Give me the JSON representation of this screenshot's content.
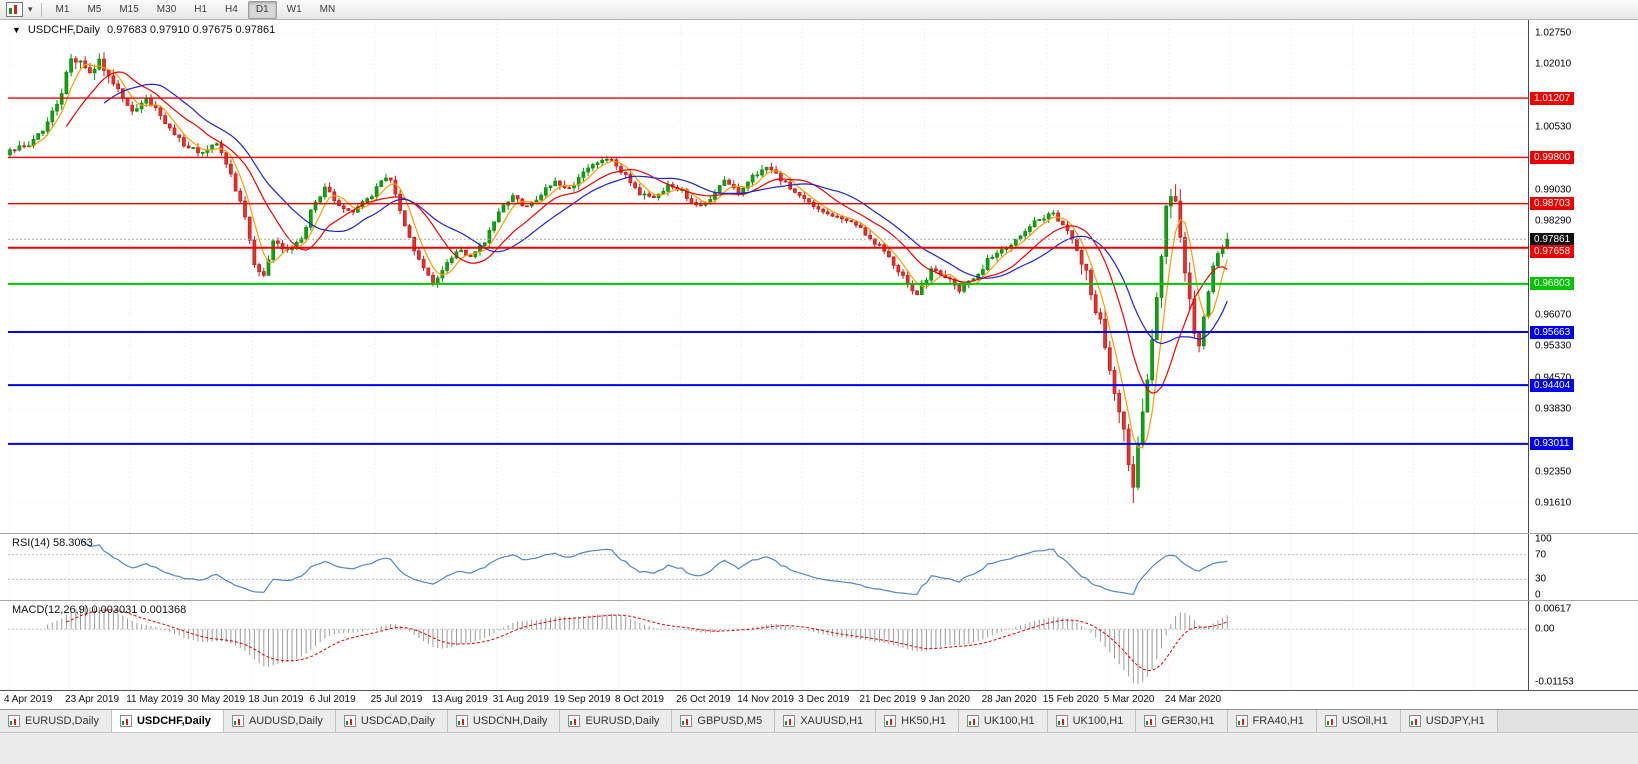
{
  "toolbar": {
    "timeframes": [
      "M1",
      "M5",
      "M15",
      "M30",
      "H1",
      "H4",
      "D1",
      "W1",
      "MN"
    ],
    "active_timeframe": "D1"
  },
  "chart_header": {
    "symbol": "USDCHF,Daily",
    "ohlc": "0.97683 0.97910 0.97675 0.97861"
  },
  "colors": {
    "bull": "#14a014",
    "bull_edge": "#0c8a0c",
    "bear": "#e23232",
    "bear_edge": "#c21717",
    "resistance": "#ef0000",
    "support": "#0000ef",
    "pivot": "#00c400",
    "bid_line": "#aaaaaa",
    "rsi_line": "#4f86c6",
    "macd_hist": "#9a9a9a",
    "macd_signal": "#e00000",
    "grid": "#e4e4e4"
  },
  "price_axis": {
    "ticks": [
      "1.02750",
      "1.02010",
      "1.00530",
      "0.99030",
      "0.98290",
      "0.97530",
      "0.96070",
      "0.95330",
      "0.94570",
      "0.93830",
      "0.92350",
      "0.91610"
    ],
    "tags": [
      {
        "text": "1.01207",
        "color": "#ef0000",
        "align": "center"
      },
      {
        "text": "0.99800",
        "color": "#ef0000",
        "align": "center"
      },
      {
        "text": "0.98703",
        "color": "#ef0000",
        "align": "center"
      },
      {
        "text": "0.97861",
        "color": "#101010",
        "align": "center"
      },
      {
        "text": "0.97658",
        "color": "#ef0000",
        "align": "below"
      },
      {
        "text": "0.96803",
        "color": "#00c400",
        "align": "center"
      },
      {
        "text": "0.95663",
        "color": "#0000ef",
        "align": "center"
      },
      {
        "text": "0.94404",
        "color": "#0000ef",
        "align": "center"
      },
      {
        "text": "0.93011",
        "color": "#0000ef",
        "align": "center"
      }
    ]
  },
  "levels": {
    "resistance": [
      1.01207,
      0.998,
      0.98703,
      0.97658
    ],
    "pivot_green": 0.96803,
    "support": [
      0.95663,
      0.94404,
      0.93011
    ],
    "current_bid": 0.97861
  },
  "rsi": {
    "label": "RSI(14) 58.3063",
    "period": 14,
    "value": 58.3063,
    "axis_ticks": [
      "100",
      "70",
      "30",
      "0"
    ],
    "dotted_levels": [
      70,
      30
    ]
  },
  "macd": {
    "label": "MACD(12,26,9) 0.003031 0.001368",
    "params": "12,26,9",
    "values": [
      0.003031,
      0.001368
    ],
    "axis_ticks": [
      "0.00617",
      "0.00",
      "-0.01153"
    ]
  },
  "time_axis": {
    "labels": [
      "4 Apr 2019",
      "23 Apr 2019",
      "11 May 2019",
      "30 May 2019",
      "18 Jun 2019",
      "6 Jul 2019",
      "25 Jul 2019",
      "13 Aug 2019",
      "31 Aug 2019",
      "19 Sep 2019",
      "8 Oct 2019",
      "26 Oct 2019",
      "14 Nov 2019",
      "3 Dec 2019",
      "21 Dec 2019",
      "9 Jan 2020",
      "28 Jan 2020",
      "15 Feb 2020",
      "5 Mar 2020",
      "24 Mar 2020"
    ]
  },
  "tabs": {
    "items": [
      "EURUSD,Daily",
      "USDCHF,Daily",
      "AUDUSD,Daily",
      "USDCAD,Daily",
      "USDCNH,Daily",
      "EURUSD,Daily",
      "GBPUSD,M5",
      "XAUUSD,H1",
      "HK50,H1",
      "UK100,H1",
      "UK100,H1",
      "GER30,H1",
      "FRA40,H1",
      "USOil,H1",
      "USDJPY,H1"
    ],
    "active_index": 1
  },
  "chart_data": {
    "type": "candlestick",
    "symbol": "USDCHF",
    "timeframe": "Daily",
    "bars": 260,
    "x_range": [
      "4 Apr 2019",
      "3 Apr 2020"
    ],
    "ylim": [
      0.909,
      1.0306
    ],
    "last_ohlc": {
      "open": 0.97683,
      "high": 0.9791,
      "low": 0.97675,
      "close": 0.97861
    },
    "crash_low": {
      "index": 239,
      "price": 0.9161
    },
    "price_anchors": [
      [
        0,
        0.9995
      ],
      [
        4,
        1.001
      ],
      [
        8,
        1.006
      ],
      [
        11,
        1.014
      ],
      [
        13,
        1.0205
      ],
      [
        15,
        1.0215
      ],
      [
        17,
        1.0185
      ],
      [
        19,
        1.0205
      ],
      [
        22,
        1.016
      ],
      [
        26,
        1.0085
      ],
      [
        29,
        1.012
      ],
      [
        32,
        1.008
      ],
      [
        35,
        1.003
      ],
      [
        38,
        1.0005
      ],
      [
        41,
        0.999
      ],
      [
        44,
        1.001
      ],
      [
        47,
        0.9935
      ],
      [
        50,
        0.984
      ],
      [
        52,
        0.972
      ],
      [
        54,
        0.9705
      ],
      [
        56,
        0.978
      ],
      [
        59,
        0.976
      ],
      [
        62,
        0.979
      ],
      [
        65,
        0.988
      ],
      [
        67,
        0.9905
      ],
      [
        70,
        0.987
      ],
      [
        73,
        0.985
      ],
      [
        76,
        0.988
      ],
      [
        79,
        0.992
      ],
      [
        81,
        0.993
      ],
      [
        83,
        0.985
      ],
      [
        86,
        0.976
      ],
      [
        88,
        0.972
      ],
      [
        90,
        0.968
      ],
      [
        92,
        0.9715
      ],
      [
        95,
        0.976
      ],
      [
        98,
        0.9745
      ],
      [
        101,
        0.978
      ],
      [
        104,
        0.985
      ],
      [
        107,
        0.9885
      ],
      [
        110,
        0.986
      ],
      [
        113,
        0.9895
      ],
      [
        116,
        0.992
      ],
      [
        119,
        0.9905
      ],
      [
        122,
        0.9945
      ],
      [
        125,
        0.9965
      ],
      [
        128,
        0.9975
      ],
      [
        131,
        0.9935
      ],
      [
        134,
        0.9895
      ],
      [
        137,
        0.988
      ],
      [
        140,
        0.9915
      ],
      [
        143,
        0.99
      ],
      [
        146,
        0.9865
      ],
      [
        149,
        0.9885
      ],
      [
        152,
        0.9925
      ],
      [
        155,
        0.9895
      ],
      [
        158,
        0.9935
      ],
      [
        161,
        0.996
      ],
      [
        164,
        0.993
      ],
      [
        167,
        0.9895
      ],
      [
        170,
        0.987
      ],
      [
        173,
        0.985
      ],
      [
        176,
        0.984
      ],
      [
        179,
        0.9825
      ],
      [
        182,
        0.98
      ],
      [
        185,
        0.977
      ],
      [
        188,
        0.9725
      ],
      [
        191,
        0.968
      ],
      [
        193,
        0.9655
      ],
      [
        196,
        0.9715
      ],
      [
        199,
        0.97
      ],
      [
        202,
        0.9665
      ],
      [
        205,
        0.969
      ],
      [
        208,
        0.9735
      ],
      [
        211,
        0.9765
      ],
      [
        214,
        0.9785
      ],
      [
        217,
        0.982
      ],
      [
        220,
        0.984
      ],
      [
        222,
        0.9845
      ],
      [
        224,
        0.9815
      ],
      [
        226,
        0.979
      ],
      [
        228,
        0.9735
      ],
      [
        230,
        0.966
      ],
      [
        232,
        0.959
      ],
      [
        234,
        0.949
      ],
      [
        236,
        0.938
      ],
      [
        238,
        0.9265
      ],
      [
        239,
        0.9195
      ],
      [
        240,
        0.929
      ],
      [
        241,
        0.9385
      ],
      [
        242,
        0.946
      ],
      [
        243,
        0.9555
      ],
      [
        244,
        0.966
      ],
      [
        245,
        0.976
      ],
      [
        246,
        0.985
      ],
      [
        247,
        0.9885
      ],
      [
        248,
        0.986
      ],
      [
        249,
        0.978
      ],
      [
        250,
        0.969
      ],
      [
        251,
        0.964
      ],
      [
        252,
        0.9575
      ],
      [
        253,
        0.9535
      ],
      [
        254,
        0.96
      ],
      [
        255,
        0.9665
      ],
      [
        256,
        0.972
      ],
      [
        257,
        0.975
      ],
      [
        258,
        0.977
      ],
      [
        259,
        0.97861
      ]
    ],
    "moving_averages": [
      {
        "name": "fast",
        "type": "sma",
        "period": 5,
        "color": "#ff9c00"
      },
      {
        "name": "mid",
        "type": "sma",
        "period": 13,
        "color": "#f00000"
      },
      {
        "name": "slow",
        "type": "sma",
        "period": 21,
        "color": "#2323cc"
      }
    ],
    "horizontal_lines": [
      {
        "price": 1.01207,
        "color": "#ef0000"
      },
      {
        "price": 0.998,
        "color": "#ef0000"
      },
      {
        "price": 0.98703,
        "color": "#ef0000"
      },
      {
        "price": 0.97658,
        "color": "#ef0000"
      },
      {
        "price": 0.96803,
        "color": "#00c400"
      },
      {
        "price": 0.95663,
        "color": "#0000ef"
      },
      {
        "price": 0.94404,
        "color": "#0000ef"
      },
      {
        "price": 0.93011,
        "color": "#0000ef"
      }
    ],
    "indicator_panes": [
      {
        "name": "RSI",
        "period": 14,
        "last_value": 58.3063,
        "range": [
          0,
          100
        ],
        "levels": [
          70,
          30
        ]
      },
      {
        "name": "MACD",
        "params": [
          12,
          26,
          9
        ],
        "last_values": [
          0.003031,
          0.001368
        ],
        "axis": [
          0.00617,
          0,
          -0.01153
        ]
      }
    ]
  }
}
